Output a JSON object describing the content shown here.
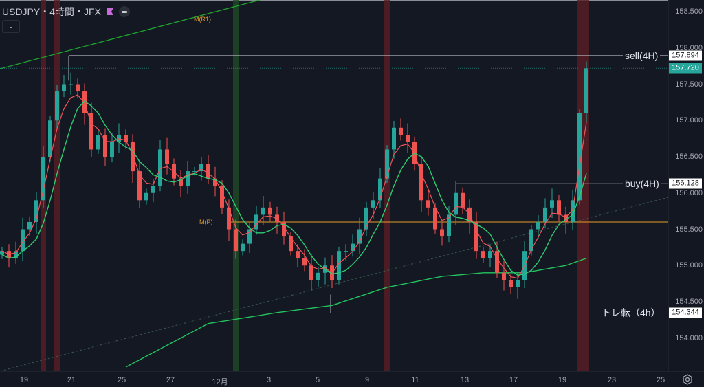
{
  "header": {
    "symbol_title": "USDJPY・4時間・JFX",
    "flag_icon": "flag-icon",
    "hide_icon": "minus-circle-icon",
    "collapse_icon": "chevron-down-icon"
  },
  "colors": {
    "up": "#26a69a",
    "down": "#ef5350",
    "ema": "#f2555a",
    "ma_short": "#2ecc71",
    "ma_long": "#22c55e",
    "pivot": "#e39b25",
    "band_red": "#5a1e24",
    "band_green": "#1e4a25"
  },
  "price_axis": {
    "ticks": [
      "158.500",
      "158.000",
      "157.500",
      "157.000",
      "156.500",
      "156.000",
      "155.500",
      "155.000",
      "154.500",
      "154.000"
    ],
    "tick_values": [
      158.5,
      158.0,
      157.5,
      157.0,
      156.5,
      156.0,
      155.5,
      155.0,
      154.5,
      154.0
    ]
  },
  "time_axis": {
    "ticks": [
      "19",
      "21",
      "25",
      "27",
      "12月",
      "3",
      "5",
      "9",
      "11",
      "13",
      "17",
      "19",
      "23",
      "25"
    ]
  },
  "lines": {
    "sell": {
      "label": "sell(4H)",
      "price": 157.894,
      "price_text": "157.894"
    },
    "buy": {
      "label": "buy(4H)",
      "price": 156.128,
      "price_text": "156.128"
    },
    "trend": {
      "label": "トレ転（4h）",
      "price": 154.344,
      "price_text": "154.344"
    },
    "current": {
      "price": 157.72,
      "price_text": "157.720"
    },
    "pivot_r1": {
      "label": "M(R1)",
      "price": 158.4
    },
    "pivot_p": {
      "label": "M(P)",
      "price": 155.6
    }
  },
  "settings_icon": "gear-icon",
  "chart_data": {
    "type": "candlestick",
    "closes": [
      155.2,
      155.1,
      155.2,
      155.5,
      155.6,
      155.9,
      156.5,
      157.0,
      157.4,
      157.5,
      157.5,
      157.4,
      157.1,
      156.6,
      156.8,
      156.5,
      156.7,
      156.8,
      156.7,
      156.3,
      155.9,
      156.0,
      156.1,
      156.6,
      156.4,
      156.2,
      156.1,
      156.3,
      156.3,
      156.4,
      156.2,
      156.1,
      155.8,
      155.5,
      155.2,
      155.3,
      155.5,
      155.7,
      155.8,
      155.7,
      155.6,
      155.4,
      155.2,
      155.1,
      155.0,
      154.8,
      154.9,
      155.0,
      154.8,
      155.2,
      155.2,
      155.3,
      155.5,
      155.8,
      155.9,
      156.2,
      156.6,
      156.9,
      156.8,
      156.7,
      156.4,
      155.9,
      155.8,
      155.5,
      155.4,
      155.7,
      156.0,
      155.8,
      155.6,
      155.2,
      155.1,
      155.2,
      154.9,
      154.8,
      154.7,
      154.8,
      155.2,
      155.5,
      155.6,
      155.8,
      155.9,
      155.7,
      155.6,
      155.9,
      157.1,
      157.72
    ],
    "long_ma": [
      {
        "i": 18,
        "v": 153.6
      },
      {
        "i": 30,
        "v": 154.2
      },
      {
        "i": 40,
        "v": 154.35
      },
      {
        "i": 48,
        "v": 154.45
      },
      {
        "i": 56,
        "v": 154.7
      },
      {
        "i": 64,
        "v": 154.85
      },
      {
        "i": 70,
        "v": 154.9
      },
      {
        "i": 76,
        "v": 154.9
      },
      {
        "i": 82,
        "v": 155.0
      },
      {
        "i": 85,
        "v": 155.1
      }
    ],
    "highlight_bands": [
      {
        "i": 6,
        "color": "red"
      },
      {
        "i": 8,
        "color": "red"
      },
      {
        "i": 34,
        "color": "green"
      },
      {
        "i": 56,
        "color": "red"
      },
      {
        "i": 84,
        "color": "red",
        "span": 2
      }
    ],
    "ylim": [
      153.6,
      158.65
    ]
  }
}
